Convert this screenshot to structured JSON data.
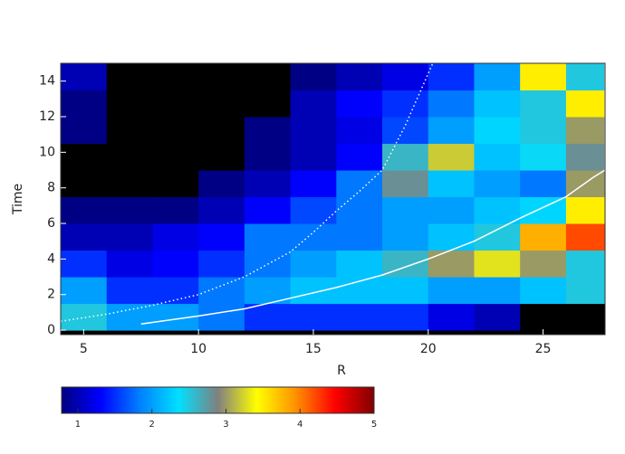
{
  "chart_data": {
    "type": "heatmap",
    "xlabel": "R",
    "ylabel": "Time",
    "xlim": [
      4,
      27.7
    ],
    "ylim": [
      -0.25,
      15
    ],
    "xticks": [
      5,
      10,
      15,
      20,
      25
    ],
    "yticks": [
      0,
      2,
      4,
      6,
      8,
      10,
      12,
      14
    ],
    "x_bins": [
      4,
      6,
      8,
      10,
      12,
      14,
      16,
      18,
      20,
      22,
      24,
      26,
      27.7
    ],
    "y_bins": [
      0,
      1.5,
      3,
      4.5,
      6,
      7.5,
      9,
      10.5,
      12,
      13.5,
      15
    ],
    "z": [
      [
        2.5,
        2,
        2,
        1.8,
        1.5,
        1.5,
        1.5,
        1.5,
        1.2,
        1,
        0.5,
        0.3
      ],
      [
        2,
        1.5,
        1.5,
        1.8,
        2,
        2.2,
        2.2,
        2.2,
        2,
        2,
        2.2,
        2.5
      ],
      [
        1.5,
        1.2,
        1.3,
        1.5,
        1.8,
        2,
        2.2,
        2.6,
        3,
        3.3,
        3,
        2.5
      ],
      [
        1,
        1,
        1.2,
        1.3,
        1.8,
        1.8,
        1.8,
        2,
        2.2,
        2.5,
        3.8,
        4.2
      ],
      [
        0.8,
        0.8,
        0.8,
        1,
        1.3,
        1.6,
        1.8,
        2,
        2,
        2.2,
        2.3,
        3.5
      ],
      [
        0.5,
        0.5,
        0.7,
        0.8,
        1,
        1.3,
        1.8,
        2.8,
        2.2,
        2,
        1.8,
        3
      ],
      [
        0.5,
        0.3,
        0.5,
        0.6,
        0.8,
        1,
        1.3,
        2.6,
        3.2,
        2.2,
        2.4,
        2.8
      ],
      [
        0.8,
        0.3,
        0.3,
        0.5,
        0.8,
        1,
        1.2,
        1.6,
        2,
        2.3,
        2.5,
        3
      ],
      [
        0.8,
        0.3,
        0.3,
        0.5,
        0.6,
        1,
        1.3,
        1.5,
        1.8,
        2.2,
        2.5,
        3.5
      ],
      [
        1,
        0.3,
        0.3,
        0.3,
        0.5,
        0.8,
        1,
        1.2,
        1.5,
        2,
        3.5,
        2.5
      ]
    ],
    "clim": [
      0.78,
      5
    ],
    "cticks": [
      1,
      2,
      3,
      4,
      5
    ],
    "colormap": [
      "#000080",
      "#0000ff",
      "#0080ff",
      "#00e0ff",
      "#808080",
      "#ffff00",
      "#ff9000",
      "#ff0000",
      "#800000"
    ],
    "below_color": "#000000",
    "series": [
      {
        "color": "#ffffff",
        "dash": true,
        "x": [
          4,
          6,
          8,
          10,
          12,
          14,
          15,
          16,
          17,
          18,
          19,
          20.2
        ],
        "y": [
          0.5,
          0.9,
          1.4,
          2,
          3,
          4.4,
          5.5,
          6.7,
          7.8,
          9,
          11.5,
          15
        ]
      },
      {
        "color": "#ffffff",
        "dash": false,
        "x": [
          7.5,
          10,
          12,
          14,
          16,
          18,
          20,
          22,
          24,
          26,
          27.2,
          27.7,
          27.7
        ],
        "y": [
          0.35,
          0.8,
          1.2,
          1.8,
          2.4,
          3.1,
          4,
          5,
          6.3,
          7.5,
          8.6,
          9,
          15
        ]
      }
    ]
  }
}
